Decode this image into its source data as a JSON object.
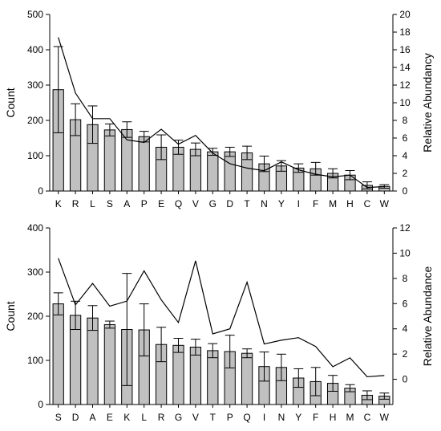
{
  "chart_data": [
    {
      "type": "bar",
      "categories": [
        "K",
        "R",
        "L",
        "S",
        "A",
        "P",
        "E",
        "Q",
        "V",
        "G",
        "D",
        "T",
        "N",
        "Y",
        "I",
        "F",
        "M",
        "H",
        "C",
        "W"
      ],
      "series": [
        {
          "type": "bar",
          "axis": "left",
          "values": [
            287,
            202,
            188,
            173,
            174,
            154,
            124,
            124,
            118,
            111,
            111,
            108,
            77,
            71,
            65,
            63,
            50,
            45,
            16,
            13
          ],
          "errors": [
            122,
            45,
            53,
            17,
            22,
            15,
            35,
            20,
            18,
            10,
            13,
            19,
            22,
            15,
            12,
            18,
            13,
            13,
            10,
            5
          ]
        },
        {
          "type": "line",
          "axis": "right",
          "values": [
            17.4,
            11.1,
            8.2,
            8.2,
            5.8,
            5.5,
            7.0,
            5.3,
            6.3,
            4.3,
            3.1,
            2.6,
            2.3,
            3.3,
            2.4,
            1.9,
            1.6,
            1.8,
            0.4,
            0.5
          ]
        }
      ],
      "ylabel": "Count",
      "y2label": "Relative Abundancy",
      "ylim": [
        0,
        500
      ],
      "y2lim": [
        0,
        20
      ],
      "yticks": [
        0,
        100,
        200,
        300,
        400,
        500
      ],
      "y2ticks": [
        0,
        2,
        4,
        6,
        8,
        10,
        12,
        14,
        16,
        18,
        20
      ],
      "grid": false
    },
    {
      "type": "bar",
      "categories": [
        "S",
        "D",
        "A",
        "E",
        "K",
        "L",
        "R",
        "G",
        "V",
        "T",
        "P",
        "Q",
        "I",
        "N",
        "Y",
        "F",
        "H",
        "M",
        "C",
        "W"
      ],
      "series": [
        {
          "type": "bar",
          "axis": "left",
          "values": [
            228,
            202,
            196,
            181,
            170,
            169,
            136,
            134,
            130,
            122,
            120,
            116,
            86,
            84,
            60,
            52,
            48,
            37,
            21,
            19
          ],
          "errors": [
            25,
            32,
            28,
            8,
            127,
            59,
            39,
            16,
            18,
            16,
            37,
            10,
            33,
            30,
            21,
            32,
            18,
            8,
            10,
            7
          ]
        },
        {
          "type": "line",
          "axis": "right",
          "values": [
            9.6,
            5.9,
            7.6,
            5.8,
            6.2,
            8.6,
            6.3,
            4.5,
            9.4,
            3.6,
            4.0,
            7.7,
            2.8,
            3.1,
            3.3,
            2.6,
            1.0,
            1.7,
            0.2,
            0.3
          ]
        }
      ],
      "ylabel": "Count",
      "y2label": "Relative Abundance",
      "ylim": [
        0,
        400
      ],
      "y2lim": [
        -2,
        12
      ],
      "yticks": [
        0,
        100,
        200,
        300,
        400
      ],
      "y2ticks": [
        0,
        2,
        4,
        6,
        8,
        10,
        12
      ],
      "grid": false
    }
  ],
  "colors": {
    "bar_fill": "#c0c0c0",
    "bar_stroke": "#000000",
    "line": "#000000"
  }
}
